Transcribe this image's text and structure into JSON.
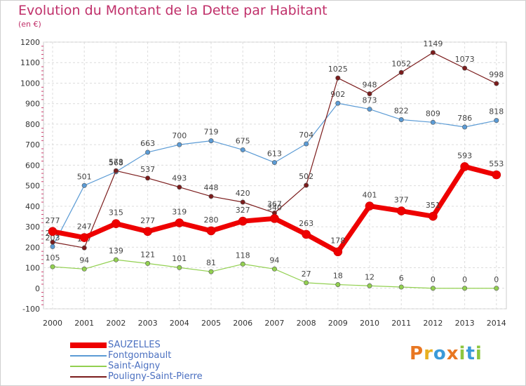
{
  "title": "Evolution du Montant de la Dette par Habitant",
  "subtitle": "(en €)",
  "logo": {
    "text": "Proxiti",
    "colors": [
      "#e87722",
      "#e8b020",
      "#3a9ad9",
      "#e87722",
      "#8dc63f",
      "#3a9ad9",
      "#8dc63f"
    ]
  },
  "chart_data": {
    "type": "line",
    "categories": [
      "2000",
      "2001",
      "2002",
      "2003",
      "2004",
      "2005",
      "2006",
      "2007",
      "2008",
      "2009",
      "2010",
      "2011",
      "2012",
      "2013",
      "2014"
    ],
    "ylim": [
      -100,
      1200
    ],
    "yticks": [
      "-100",
      "0",
      "100",
      "200",
      "300",
      "400",
      "500",
      "600",
      "700",
      "800",
      "900",
      "1000",
      "1100",
      "1200"
    ],
    "grid": true,
    "legend_position": "bottom-left",
    "series": [
      {
        "name": "Fontgombault",
        "color": "#5b9bd5",
        "width": 1.2,
        "values": [
          203,
          501,
          568,
          663,
          700,
          719,
          675,
          613,
          704,
          902,
          873,
          822,
          809,
          786,
          818
        ],
        "labels": [
          "203",
          "501",
          "568",
          "663",
          "700",
          "719",
          "675",
          "613",
          "704",
          "902",
          "873",
          "822",
          "809",
          "786",
          "818"
        ]
      },
      {
        "name": "Saint-Aigny",
        "color": "#92d050",
        "width": 1.2,
        "values": [
          105,
          94,
          139,
          121,
          101,
          81,
          118,
          94,
          27,
          18,
          12,
          6,
          0,
          0,
          0
        ],
        "labels": [
          "105",
          "94",
          "139",
          "121",
          "101",
          "81",
          "118",
          "94",
          "27",
          "18",
          "12",
          "6",
          "0",
          "0",
          "0"
        ]
      },
      {
        "name": "Pouligny-Saint-Pierre",
        "color": "#7b1c1c",
        "width": 1.2,
        "values": [
          225,
          197,
          573,
          537,
          493,
          448,
          420,
          367,
          502,
          1025,
          948,
          1052,
          1149,
          1073,
          998
        ],
        "labels": [
          "225",
          "197",
          "573",
          "537",
          "493",
          "448",
          "420",
          "367",
          "502",
          "1025",
          "948",
          "1052",
          "1149",
          "1073",
          "998"
        ]
      },
      {
        "name": "SAUZELLES",
        "color": "#ee0000",
        "width": 7,
        "values": [
          277,
          247,
          315,
          277,
          319,
          280,
          327,
          340,
          263,
          178,
          401,
          377,
          351,
          593,
          553
        ],
        "labels": [
          "277",
          "247",
          "315",
          "277",
          "319",
          "280",
          "327",
          "340",
          "263",
          "178",
          "401",
          "377",
          "351",
          "593",
          "553"
        ]
      }
    ],
    "legend": [
      "SAUZELLES",
      "Fontgombault",
      "Saint-Aigny",
      "Pouligny-Saint-Pierre"
    ]
  }
}
